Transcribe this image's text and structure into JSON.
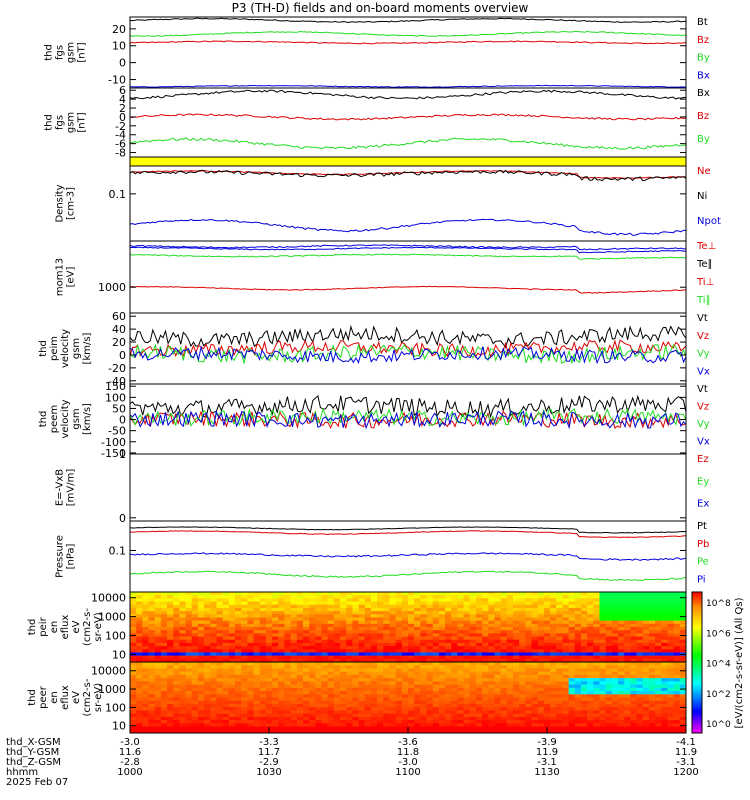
{
  "title": "P3 (TH-D) fields and on-board moments overview",
  "colors": {
    "black": "#000000",
    "red": "#dd0000",
    "green": "#22dd22",
    "blue": "#0000dd",
    "yellow": "#ffff00"
  },
  "chart_data": [
    {
      "type": "line",
      "panel": "fgs",
      "ylabel": [
        "thd",
        "fgs",
        "gsm",
        "[nT]"
      ],
      "ylim": [
        -15,
        27
      ],
      "yticks": [
        20,
        10,
        0,
        -10
      ],
      "series": [
        {
          "name": "Bt",
          "color": "black",
          "base": 25,
          "amp": 1.0,
          "noise": 0.3
        },
        {
          "name": "Bz",
          "color": "red",
          "base": 12,
          "amp": 0.6,
          "noise": 0.3
        },
        {
          "name": "By",
          "color": "green",
          "base": 17,
          "amp": 1.2,
          "noise": 0.3
        },
        {
          "name": "Bx",
          "color": "blue",
          "base": -14,
          "amp": 0.4,
          "noise": 0.2
        }
      ],
      "legend": [
        "Bt",
        "Bz",
        "By",
        "Bx"
      ]
    },
    {
      "type": "line",
      "panel": "fgs-angles",
      "ylabel": [
        "thd",
        "fgs",
        "gsm",
        "[nT]"
      ],
      "ylim": [
        -9,
        6.5
      ],
      "yticks": [
        6,
        4,
        2,
        0,
        -2,
        -4,
        -6,
        -8
      ],
      "series": [
        {
          "name": "Bx",
          "color": "black",
          "base": 5,
          "amp": 0.8,
          "noise": 0.25
        },
        {
          "name": "Bz",
          "color": "red",
          "base": 0,
          "amp": 0.5,
          "noise": 0.2
        },
        {
          "name": "By",
          "color": "green",
          "base": -6,
          "amp": 1.0,
          "noise": 0.3
        }
      ],
      "legend": [
        "Bx",
        "Bz",
        "By"
      ]
    },
    {
      "type": "line",
      "panel": "density",
      "ylabel": [
        "Density",
        "[cm-3]"
      ],
      "ylog": true,
      "ylim": [
        0.012,
        0.35
      ],
      "yticks": [
        0.1
      ],
      "series": [
        {
          "name": "Ne",
          "color": "red",
          "base": 0.26,
          "amp": 0.02,
          "noise": 0.005
        },
        {
          "name": "Ni",
          "color": "black",
          "base": 0.25,
          "amp": 0.02,
          "noise": 0.02
        },
        {
          "name": "Npot",
          "color": "blue",
          "base": 0.025,
          "amp": 0.006,
          "noise": 0.001
        }
      ],
      "legend": [
        "Ne",
        "Ni",
        "Npot"
      ]
    },
    {
      "type": "line",
      "panel": "temperature",
      "ylabel": [
        "mom13",
        "[eV]"
      ],
      "ylog": true,
      "ylim": [
        250,
        12000
      ],
      "yticks": [
        1000
      ],
      "series": [
        {
          "name": "Te⊥",
          "color": "blue",
          "base": 9000,
          "amp": 500,
          "noise": 300
        },
        {
          "name": "Te∥",
          "color": "blue",
          "base": 8000,
          "amp": 400,
          "noise": 200
        },
        {
          "name": "Ti⊥",
          "color": "green",
          "base": 5500,
          "amp": 300,
          "noise": 150
        },
        {
          "name": "Ti∥",
          "color": "red",
          "base": 950,
          "amp": 80,
          "noise": 20
        }
      ],
      "legend": [
        "Te⊥",
        "Te∥",
        "Ti⊥",
        "Ti∥"
      ]
    },
    {
      "type": "line",
      "panel": "peim-velocity",
      "ylabel": [
        "thd",
        "peim",
        "velocity",
        "gsm",
        "[km/s]"
      ],
      "ylim": [
        -45,
        65
      ],
      "yticks": [
        60,
        40,
        20,
        0,
        -20,
        -40
      ],
      "series": [
        {
          "name": "Vt",
          "color": "black",
          "base": 28,
          "amp": 5,
          "noise": 12
        },
        {
          "name": "Vz",
          "color": "red",
          "base": 10,
          "amp": 3,
          "noise": 10
        },
        {
          "name": "Vy",
          "color": "green",
          "base": 2,
          "amp": 4,
          "noise": 12
        },
        {
          "name": "Vx",
          "color": "blue",
          "base": 0,
          "amp": 3,
          "noise": 10
        }
      ],
      "legend": [
        "Vt",
        "Vz",
        "Vy",
        "Vx"
      ]
    },
    {
      "type": "line",
      "panel": "peem-velocity",
      "ylabel": [
        "thd",
        "peem",
        "velocity",
        "gsm",
        "[km/s]"
      ],
      "ylim": [
        -155,
        160
      ],
      "yticks": [
        150,
        100,
        50,
        0,
        -50,
        -100,
        -150
      ],
      "series": [
        {
          "name": "Vt",
          "color": "black",
          "base": 60,
          "amp": 10,
          "noise": 40
        },
        {
          "name": "Vz",
          "color": "red",
          "base": 0,
          "amp": 5,
          "noise": 35
        },
        {
          "name": "Vy",
          "color": "green",
          "base": 10,
          "amp": 5,
          "noise": 35
        },
        {
          "name": "Vx",
          "color": "blue",
          "base": 0,
          "amp": 5,
          "noise": 35
        }
      ],
      "legend": [
        "Vt",
        "Vz",
        "Vy",
        "Vx"
      ]
    },
    {
      "type": "line",
      "panel": "efield",
      "ylabel": [
        "E=-VxB",
        "[mV/m]"
      ],
      "ylim": [
        -0.05,
        1.0
      ],
      "yticks": [
        1.0,
        0.0
      ],
      "series": [],
      "legend": [
        "Ez",
        "Ey",
        "Ex"
      ]
    },
    {
      "type": "line",
      "panel": "pressure",
      "ylabel": [
        "Pressure",
        "[nPa]"
      ],
      "ylog": true,
      "ylim": [
        0.012,
        0.45
      ],
      "yticks": [
        0.1
      ],
      "series": [
        {
          "name": "Pt",
          "color": "black",
          "base": 0.31,
          "amp": 0.02,
          "noise": 0.004
        },
        {
          "name": "Pb",
          "color": "red",
          "base": 0.25,
          "amp": 0.02,
          "noise": 0.004
        },
        {
          "name": "Pe",
          "color": "blue",
          "base": 0.08,
          "amp": 0.006,
          "noise": 0.003
        },
        {
          "name": "Pi",
          "color": "green",
          "base": 0.03,
          "amp": 0.004,
          "noise": 0.001
        }
      ],
      "legend": [
        "Pt",
        "Pb",
        "Pe",
        "Pi"
      ]
    },
    {
      "type": "heatmap",
      "panel": "peir",
      "ylabel": [
        "thd",
        "peir",
        "en",
        "eflux",
        "eV",
        "(cm2-s-",
        "sr-eV)"
      ],
      "ylog": true,
      "ylim": [
        4,
        20000
      ],
      "yticks": [
        10000,
        1000,
        100,
        10
      ]
    },
    {
      "type": "heatmap",
      "panel": "peer",
      "ylabel": [
        "thd",
        "peer",
        "en",
        "eflux",
        "eV",
        "(cm2-s-",
        "sr-eV)"
      ],
      "ylog": true,
      "ylim": [
        4,
        30000
      ],
      "yticks": [
        10000,
        1000,
        100,
        10
      ]
    }
  ],
  "legend_labels": [
    [
      "Bt",
      "Bz",
      "By",
      "Bx"
    ],
    [
      "Bx",
      "Bz",
      "By"
    ],
    [
      "Ne",
      "Ni",
      "Npot"
    ],
    [
      "Te⊥",
      "Te∥",
      "Ti⊥",
      "Ti∥"
    ],
    [
      "Vt",
      "Vz",
      "Vy",
      "Vx"
    ],
    [
      "Vt",
      "Vz",
      "Vy",
      "Vx"
    ],
    [
      "Ez",
      "Ey",
      "Ex"
    ],
    [
      "Pt",
      "Pb",
      "Pe",
      "Pi"
    ]
  ],
  "colorbar": {
    "label": "[eV/(cm2-s-sr-eV)] (All Qs)",
    "ticks": [
      "10^8",
      "10^6",
      "10^4",
      "10^2",
      "10^0"
    ]
  },
  "x_axis": {
    "row_labels": [
      "thd_X-GSM",
      "thd_Y-GSM",
      "thd_Z-GSM",
      "hhmm",
      "2025 Feb 07"
    ],
    "ticks": [
      {
        "X": "-3.0",
        "Y": "11.6",
        "Z": "-2.8",
        "hhmm": "1000"
      },
      {
        "X": "-3.3",
        "Y": "11.7",
        "Z": "-2.9",
        "hhmm": "1030"
      },
      {
        "X": "-3.6",
        "Y": "11.8",
        "Z": "-3.0",
        "hhmm": "1100"
      },
      {
        "X": "-3.9",
        "Y": "11.9",
        "Z": "-3.1",
        "hhmm": "1130"
      },
      {
        "X": "-4.1",
        "Y": "11.9",
        "Z": "-3.1",
        "hhmm": "1200"
      }
    ]
  }
}
